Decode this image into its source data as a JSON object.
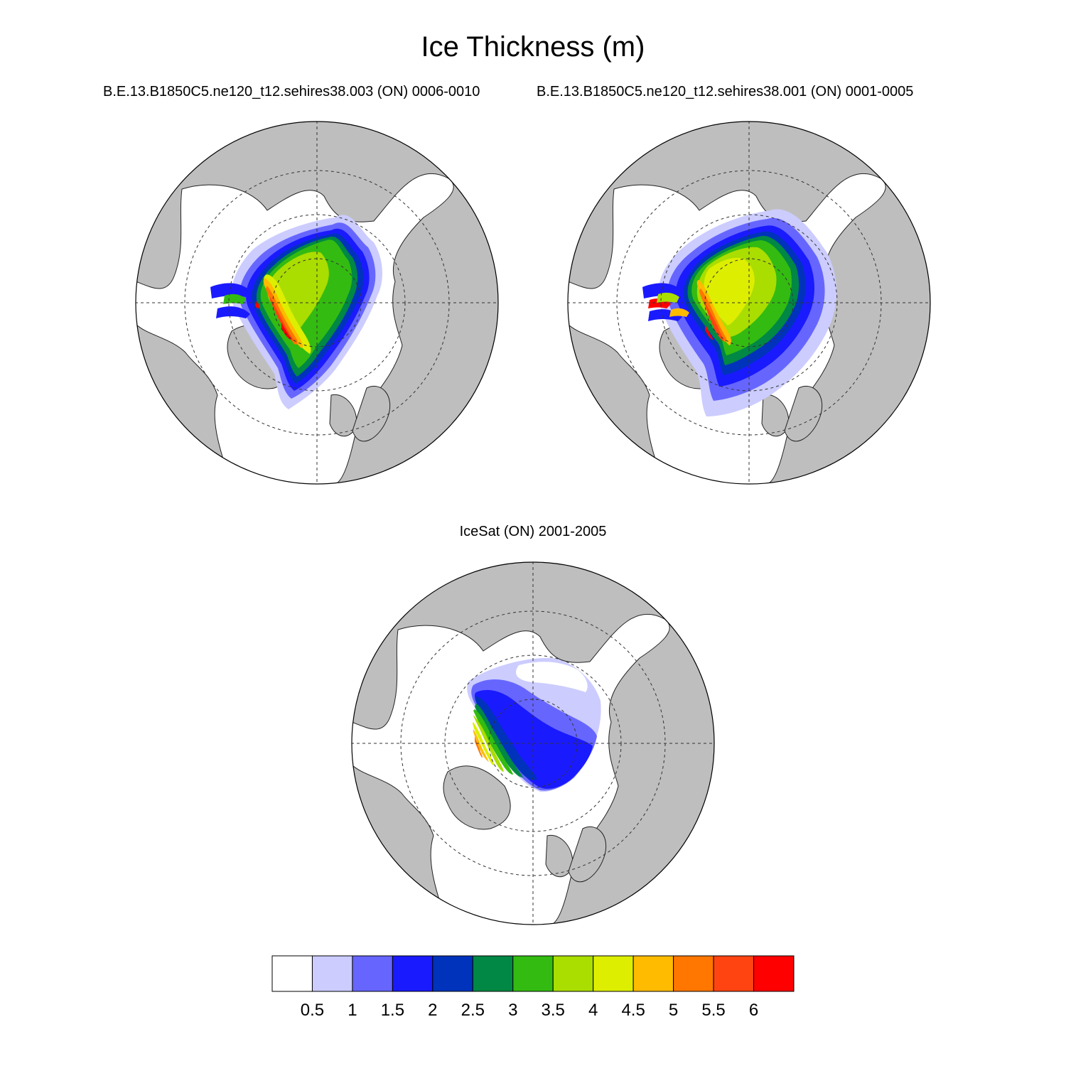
{
  "title": "Ice Thickness (m)",
  "panels": [
    {
      "subtitle": "B.E.13.B1850C5.ne120_t12.sehires38.003 (ON) 0006-0010"
    },
    {
      "subtitle": "B.E.13.B1850C5.ne120_t12.sehires38.001 (ON) 0001-0005"
    },
    {
      "subtitle": "IceSat (ON) 2001-2005"
    }
  ],
  "colorbar": {
    "labels": [
      "0.5",
      "1",
      "1.5",
      "2",
      "2.5",
      "3",
      "3.5",
      "4",
      "4.5",
      "5",
      "5.5",
      "6"
    ],
    "colors": [
      "#ffffff",
      "#ccccff",
      "#6666ff",
      "#1a1aff",
      "#0033bb",
      "#008844",
      "#33bb11",
      "#aadd00",
      "#ddee00",
      "#ffbb00",
      "#ff7700",
      "#ff4411",
      "#ff0000"
    ]
  },
  "colors": {
    "land": "#bebebe",
    "ocean": "#ffffff",
    "outline": "#000000"
  }
}
